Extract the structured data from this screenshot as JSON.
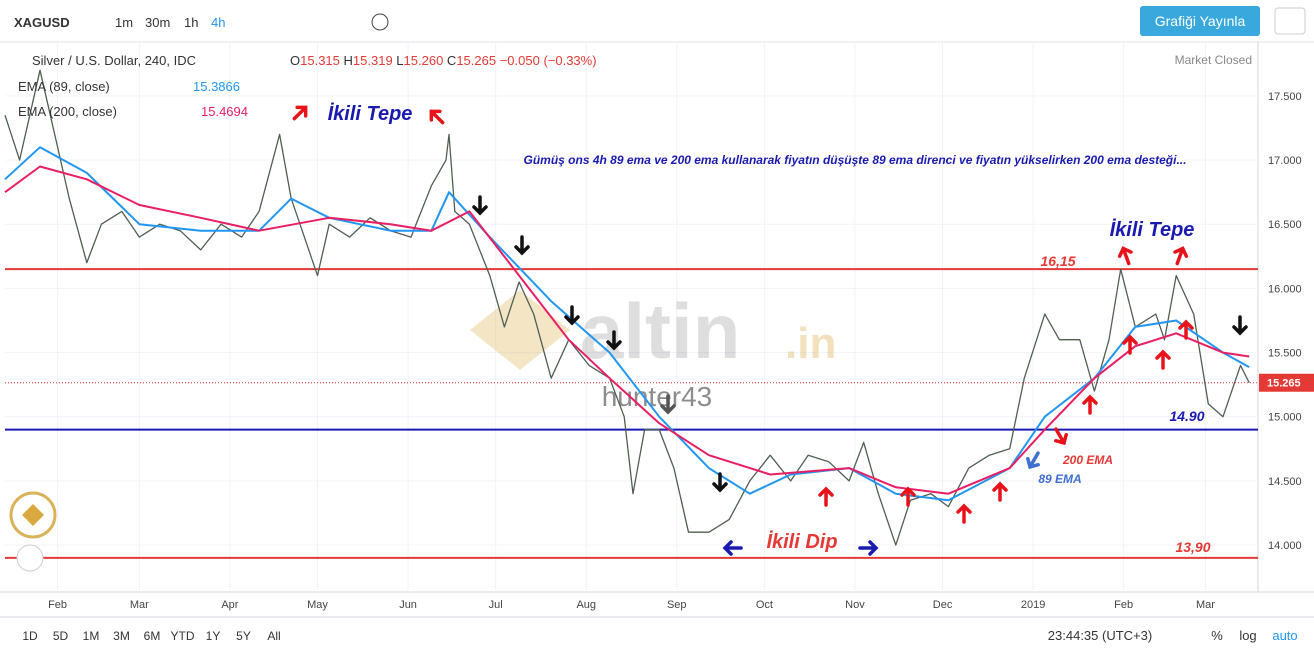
{
  "toolbar": {
    "intervals": [
      "1m",
      "30m",
      "1h",
      "4h"
    ],
    "publish": "Grafiği Yayınla"
  },
  "legend": {
    "title": "Silver / U.S. Dollar, 240, IDC",
    "ohlc": [
      {
        "label": "O",
        "value": "15.315"
      },
      {
        "label": "H",
        "value": "15.319"
      },
      {
        "label": "L",
        "value": "15.260"
      },
      {
        "label": "C",
        "value": "15.265"
      }
    ],
    "change": "−0.050 (−0.33%)",
    "status": "Market Closed"
  },
  "chart_data": {
    "type": "line",
    "series": [
      {
        "name": "XAGUSD",
        "color": "#4f5f52",
        "x": [
          13,
          18,
          25,
          30,
          35,
          41,
          46,
          53,
          59,
          66,
          73,
          80,
          87,
          94,
          100,
          107,
          111,
          114,
          120,
          124,
          131,
          138,
          145,
          152,
          159,
          164,
          165,
          167,
          172,
          179,
          184,
          189,
          194,
          200,
          206,
          213,
          220,
          225,
          228,
          232,
          237,
          242,
          247,
          254,
          261,
          268,
          275,
          282,
          288,
          295,
          302,
          307,
          312,
          318,
          323,
          330,
          336,
          343,
          350,
          357,
          362,
          369,
          374,
          381,
          386,
          391,
          395,
          400,
          407,
          410,
          414,
          420,
          425,
          430,
          436,
          439
        ],
        "values": [
          17.35,
          17.0,
          17.7,
          17.2,
          16.7,
          16.2,
          16.5,
          16.6,
          16.4,
          16.5,
          16.45,
          16.3,
          16.5,
          16.4,
          16.6,
          17.2,
          16.7,
          16.5,
          16.1,
          16.5,
          16.4,
          16.55,
          16.45,
          16.4,
          16.8,
          17.0,
          17.2,
          16.6,
          16.5,
          16.1,
          15.7,
          16.05,
          15.8,
          15.3,
          15.6,
          15.4,
          15.3,
          15.0,
          14.4,
          14.9,
          14.9,
          14.6,
          14.1,
          14.1,
          14.2,
          14.5,
          14.7,
          14.5,
          14.7,
          14.65,
          14.5,
          14.8,
          14.4,
          14.0,
          14.35,
          14.4,
          14.3,
          14.6,
          14.7,
          14.75,
          15.3,
          15.8,
          15.6,
          15.6,
          15.2,
          15.6,
          16.15,
          15.7,
          15.8,
          15.6,
          16.1,
          15.8,
          15.1,
          15.0,
          15.4,
          15.265
        ]
      },
      {
        "name": "EMA (89, close)",
        "color": "#2196f3",
        "last_value": "15.3866",
        "x": [
          13,
          25,
          41,
          59,
          80,
          100,
          111,
          124,
          145,
          159,
          165,
          179,
          200,
          220,
          237,
          254,
          268,
          282,
          302,
          318,
          336,
          357,
          369,
          386,
          400,
          414,
          430,
          439
        ],
        "values": [
          16.85,
          17.1,
          16.9,
          16.5,
          16.45,
          16.45,
          16.7,
          16.55,
          16.45,
          16.45,
          16.75,
          16.4,
          15.9,
          15.5,
          15.0,
          14.6,
          14.4,
          14.55,
          14.6,
          14.4,
          14.35,
          14.6,
          15.0,
          15.3,
          15.7,
          15.75,
          15.5,
          15.3866
        ]
      },
      {
        "name": "EMA (200, close)",
        "color": "#e91e63",
        "last_value": "15.4694",
        "x": [
          13,
          25,
          41,
          59,
          80,
          100,
          124,
          145,
          159,
          172,
          189,
          206,
          220,
          237,
          254,
          275,
          302,
          318,
          336,
          357,
          369,
          386,
          400,
          414,
          430,
          439
        ],
        "values": [
          16.75,
          16.95,
          16.85,
          16.65,
          16.55,
          16.45,
          16.55,
          16.5,
          16.45,
          16.6,
          16.1,
          15.6,
          15.3,
          14.95,
          14.7,
          14.55,
          14.6,
          14.45,
          14.4,
          14.6,
          14.9,
          15.3,
          15.55,
          15.65,
          15.5,
          15.4694
        ]
      }
    ],
    "xlim": [
      13,
      442
    ],
    "xticks": [
      {
        "value": 31,
        "label": "Feb"
      },
      {
        "value": 59,
        "label": "Mar"
      },
      {
        "value": 90,
        "label": "Apr"
      },
      {
        "value": 120,
        "label": "May"
      },
      {
        "value": 151,
        "label": "Jun"
      },
      {
        "value": 181,
        "label": "Jul"
      },
      {
        "value": 212,
        "label": "Aug"
      },
      {
        "value": 243,
        "label": "Sep"
      },
      {
        "value": 273,
        "label": "Oct"
      },
      {
        "value": 304,
        "label": "Nov"
      },
      {
        "value": 334,
        "label": "Dec"
      },
      {
        "value": 365,
        "label": "2019"
      },
      {
        "value": 396,
        "label": "Feb"
      },
      {
        "value": 424,
        "label": "Mar"
      }
    ],
    "ylim": [
      13.65,
      17.92
    ],
    "yticks": [
      {
        "value": 14,
        "label": "14.000"
      },
      {
        "value": 14.5,
        "label": "14.500"
      },
      {
        "value": 15,
        "label": "15.000"
      },
      {
        "value": 15.5,
        "label": "15.500"
      },
      {
        "value": 16,
        "label": "16.000"
      },
      {
        "value": 16.5,
        "label": "16.500"
      },
      {
        "value": 17,
        "label": "17.000"
      },
      {
        "value": 17.5,
        "label": "17.500"
      }
    ],
    "grid": true,
    "last_price": 15.265,
    "hlines": [
      {
        "value": 16.15,
        "color": "#e53935",
        "label": "16,15"
      },
      {
        "value": 14.9,
        "color": "#1a1ab0",
        "label": "14.90"
      },
      {
        "value": 13.9,
        "color": "#e53935",
        "label": "13,90"
      }
    ],
    "annotations": [
      "İkili Tepe",
      "İkili Tepe",
      "İkili Dip",
      "200 EMA",
      "89 EMA",
      "Gümüş ons 4h 89 ema ve 200 ema kullanarak fiyatın düşüşte 89 ema direnci ve fiyatın yükselirken 200 ema desteği..."
    ],
    "watermark": [
      "altin",
      ".in",
      "hunter43"
    ]
  },
  "bottom_bar": {
    "ranges": [
      "1D",
      "5D",
      "1M",
      "3M",
      "6M",
      "YTD",
      "1Y",
      "5Y",
      "All"
    ],
    "clock": "23:44:35 (UTC+3)",
    "options": [
      "%",
      "log",
      "auto"
    ]
  }
}
